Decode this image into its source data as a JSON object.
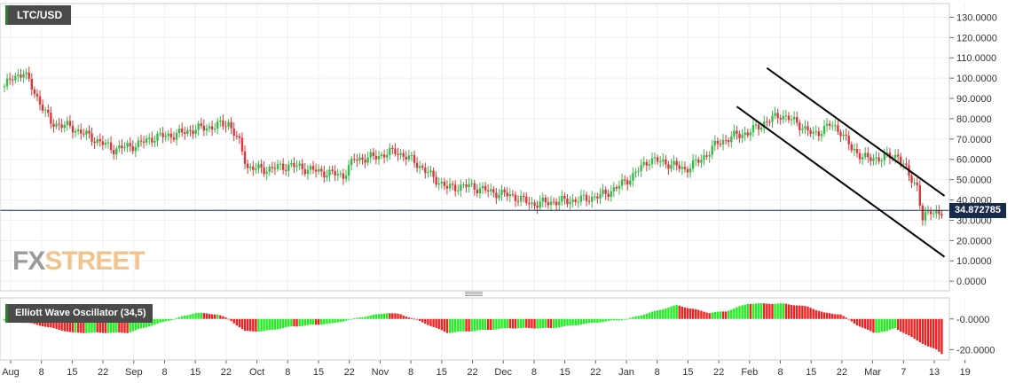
{
  "symbol": "LTC/USD",
  "oscillator_label": "Elliott Wave Oscillator (34,5)",
  "watermark": {
    "fx": "FX",
    "street": "STREET"
  },
  "current_price": "34.872785",
  "colors": {
    "up": "#3bb84a",
    "down": "#d9383a",
    "osc_up": "#22ee22",
    "osc_down": "#ee2222",
    "grid": "#eef0f3",
    "price_line": "#1a2a4a",
    "channel": "#000000"
  },
  "chart_data": {
    "type": "candlestick",
    "title": "LTC/USD",
    "price_axis": {
      "ylim": [
        -3,
        135
      ],
      "ticks": [
        "130.0000",
        "120.0000",
        "110.0000",
        "100.0000",
        "90.0000",
        "80.0000",
        "70.0000",
        "60.0000",
        "50.0000",
        "40.0000",
        "30.0000",
        "20.0000",
        "10.0000",
        "0.0000"
      ]
    },
    "date_axis": {
      "labels": [
        "Aug",
        "8",
        "15",
        "22",
        "Sep",
        "8",
        "15",
        "22",
        "Oct",
        "8",
        "15",
        "22",
        "Nov",
        "8",
        "15",
        "22",
        "Dec",
        "8",
        "15",
        "22",
        "Jan",
        "8",
        "15",
        "22",
        "Feb",
        "8",
        "15",
        "22",
        "Mar",
        "7",
        "13",
        "19"
      ]
    },
    "price_keypoints": [
      [
        0,
        96
      ],
      [
        3,
        100
      ],
      [
        7,
        103
      ],
      [
        11,
        93
      ],
      [
        17,
        78
      ],
      [
        24,
        76
      ],
      [
        30,
        72
      ],
      [
        40,
        65
      ],
      [
        48,
        67
      ],
      [
        55,
        71
      ],
      [
        62,
        72
      ],
      [
        70,
        75
      ],
      [
        76,
        76
      ],
      [
        82,
        78
      ],
      [
        86,
        68
      ],
      [
        89,
        56
      ],
      [
        95,
        55
      ],
      [
        105,
        57
      ],
      [
        115,
        54
      ],
      [
        124,
        52
      ],
      [
        128,
        60
      ],
      [
        135,
        61
      ],
      [
        143,
        64
      ],
      [
        150,
        59
      ],
      [
        156,
        52
      ],
      [
        162,
        46
      ],
      [
        170,
        47
      ],
      [
        178,
        44
      ],
      [
        186,
        42
      ],
      [
        193,
        38
      ],
      [
        200,
        39
      ],
      [
        210,
        40
      ],
      [
        218,
        42
      ],
      [
        224,
        46
      ],
      [
        230,
        52
      ],
      [
        236,
        60
      ],
      [
        243,
        58
      ],
      [
        249,
        55
      ],
      [
        255,
        60
      ],
      [
        261,
        68
      ],
      [
        268,
        72
      ],
      [
        272,
        73
      ],
      [
        278,
        78
      ],
      [
        284,
        82
      ],
      [
        290,
        78
      ],
      [
        296,
        72
      ],
      [
        302,
        77
      ],
      [
        306,
        74
      ],
      [
        310,
        65
      ],
      [
        316,
        60
      ],
      [
        322,
        61
      ],
      [
        327,
        62
      ],
      [
        331,
        52
      ],
      [
        334,
        47
      ],
      [
        336,
        30
      ],
      [
        339,
        35
      ],
      [
        343,
        33
      ]
    ],
    "current_price_value": 34.872785,
    "channel_lines": [
      {
        "name": "upper",
        "from": [
          279,
          105
        ],
        "to": [
          344,
          42
        ]
      },
      {
        "name": "lower",
        "from": [
          268,
          86
        ],
        "to": [
          344,
          12
        ]
      }
    ],
    "oscillator": {
      "name": "Elliott Wave Oscillator (34,5)",
      "ylim": [
        -25,
        12
      ],
      "ticks": [
        "-0.0000",
        "-20.0000"
      ],
      "keypoints": [
        [
          0,
          -1
        ],
        [
          10,
          -3
        ],
        [
          25,
          -9
        ],
        [
          45,
          -9
        ],
        [
          60,
          -1
        ],
        [
          70,
          4
        ],
        [
          78,
          3
        ],
        [
          82,
          0
        ],
        [
          88,
          -8
        ],
        [
          95,
          -8
        ],
        [
          105,
          -5
        ],
        [
          120,
          -3
        ],
        [
          130,
          1
        ],
        [
          140,
          4
        ],
        [
          145,
          3
        ],
        [
          150,
          0
        ],
        [
          162,
          -9
        ],
        [
          170,
          -8
        ],
        [
          185,
          -6
        ],
        [
          200,
          -6
        ],
        [
          218,
          -2
        ],
        [
          228,
          0
        ],
        [
          236,
          4
        ],
        [
          246,
          9
        ],
        [
          258,
          4
        ],
        [
          264,
          5
        ],
        [
          272,
          10
        ],
        [
          285,
          10
        ],
        [
          294,
          8
        ],
        [
          300,
          4
        ],
        [
          306,
          3
        ],
        [
          312,
          -4
        ],
        [
          318,
          -9
        ],
        [
          323,
          -8
        ],
        [
          326,
          -6
        ],
        [
          332,
          -12
        ],
        [
          336,
          -16
        ],
        [
          338,
          -18
        ],
        [
          341,
          -20
        ],
        [
          344,
          -24
        ]
      ]
    }
  }
}
